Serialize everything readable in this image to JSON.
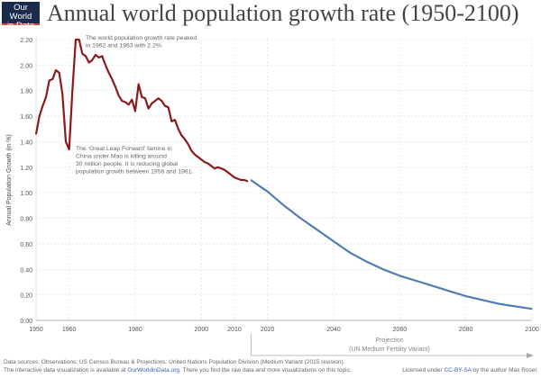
{
  "logo": {
    "line1": "Our World",
    "line2": "in Data"
  },
  "colors": {
    "observed": "#8b1a1a",
    "projection": "#4f7db3",
    "grid": "#ddd"
  },
  "chart_data": {
    "type": "line",
    "title": "Annual world population growth rate (1950-2100)",
    "ylabel": "Annual Population Growth (in %)",
    "xlabel": "",
    "xlim": [
      1950,
      2100
    ],
    "ylim": [
      0,
      2.2
    ],
    "x_ticks": [
      1950,
      1960,
      1980,
      2000,
      2010,
      2020,
      2040,
      2060,
      2080,
      2100
    ],
    "y_ticks": [
      "0.00",
      "0.20",
      "0.40",
      "0.60",
      "0.80",
      "1.00",
      "1.20",
      "1.40",
      "1.60",
      "1.80",
      "2.00",
      "2.20"
    ],
    "grid": true,
    "series": [
      {
        "x": [
          1950,
          1951,
          1952,
          1953,
          1954,
          1955,
          1956,
          1957,
          1958,
          1959,
          1960,
          1961,
          1962,
          1963,
          1964,
          1965,
          1966,
          1967,
          1968,
          1969,
          1970,
          1971,
          1972,
          1973,
          1974,
          1975,
          1976,
          1977,
          1978,
          1979,
          1980,
          1981,
          1982,
          1983,
          1984,
          1985,
          1986,
          1987,
          1988,
          1989,
          1990,
          1991,
          1992,
          1993,
          1994,
          1995,
          1996,
          1997,
          1998,
          1999,
          2000,
          2001,
          2002,
          2003,
          2004,
          2005,
          2006,
          2007,
          2008,
          2009,
          2010,
          2011,
          2012,
          2013,
          2014
        ],
        "values": [
          1.46,
          1.6,
          1.68,
          1.75,
          1.88,
          1.89,
          1.96,
          1.94,
          1.77,
          1.4,
          1.34,
          1.8,
          2.2,
          2.2,
          2.09,
          2.07,
          2.02,
          2.04,
          2.08,
          2.06,
          2.07,
          2.0,
          1.94,
          1.89,
          1.83,
          1.76,
          1.72,
          1.71,
          1.69,
          1.73,
          1.64,
          1.85,
          1.75,
          1.74,
          1.66,
          1.7,
          1.72,
          1.74,
          1.72,
          1.68,
          1.67,
          1.56,
          1.57,
          1.5,
          1.45,
          1.42,
          1.38,
          1.33,
          1.3,
          1.28,
          1.26,
          1.24,
          1.23,
          1.21,
          1.19,
          1.2,
          1.19,
          1.18,
          1.16,
          1.14,
          1.12,
          1.11,
          1.1,
          1.1,
          1.09
        ]
      },
      {
        "x": [
          2015,
          2016,
          2020,
          2025,
          2030,
          2035,
          2040,
          2045,
          2050,
          2055,
          2060,
          2065,
          2070,
          2075,
          2080,
          2085,
          2090,
          2095,
          2100
        ],
        "values": [
          1.1,
          1.08,
          1.01,
          0.9,
          0.8,
          0.71,
          0.62,
          0.53,
          0.46,
          0.4,
          0.35,
          0.31,
          0.27,
          0.23,
          0.19,
          0.16,
          0.13,
          0.11,
          0.09
        ]
      }
    ],
    "annotations": {
      "peak": [
        "The world population growth rate peaked",
        "in 1962 and 1963 with 2.2%."
      ],
      "famine": [
        "The ‘Great Leap Forward’ famine in",
        "China under Mao is killing around",
        "30 million people. It is reducing global",
        "population growth between 1958 and 1961."
      ],
      "projection": [
        "Projection",
        "(UN Medium Fertility Variant)"
      ]
    }
  },
  "footer": {
    "line1": "Data sources: Observations: US Census Bureau & Projections: United Nations Population Division (Medium Variant (2015 revision).",
    "line2_pre": "The interactive data visualization is available at ",
    "line2_link": "OurWorldinData.org",
    "line2_post": ". There you find the raw data and more visualizations on this topic.",
    "license_pre": "Licensed under ",
    "license_link": "CC-BY-SA",
    "license_post": " by the author Max Roser."
  }
}
